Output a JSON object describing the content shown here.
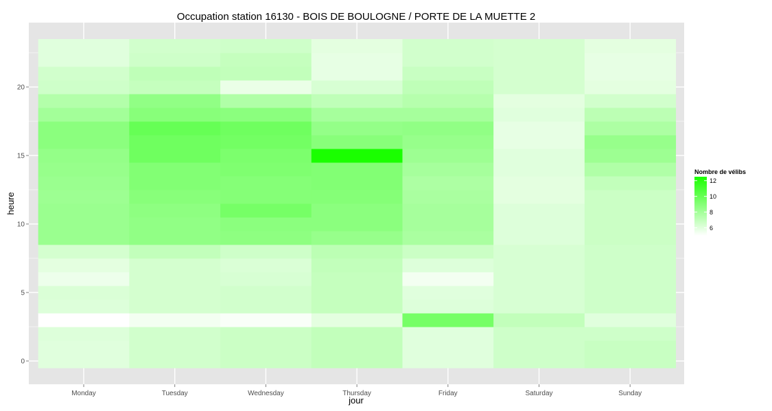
{
  "chart_data": {
    "type": "heatmap",
    "title": "Occupation station 16130 - BOIS DE BOULOGNE / PORTE DE LA MUETTE 2",
    "xlabel": "jour",
    "ylabel": "heure",
    "categories": [
      "Monday",
      "Tuesday",
      "Wednesday",
      "Thursday",
      "Friday",
      "Saturday",
      "Sunday"
    ],
    "y": [
      0,
      1,
      2,
      3,
      4,
      5,
      6,
      7,
      8,
      9,
      10,
      11,
      12,
      13,
      14,
      15,
      16,
      17,
      18,
      19,
      20,
      21,
      22,
      23
    ],
    "y_ticks": [
      0,
      5,
      10,
      15,
      20
    ],
    "ylim": [
      -0.5,
      23.5
    ],
    "values": [
      [
        6.0,
        6.5,
        6.7,
        7.0,
        6.0,
        6.6,
        6.8
      ],
      [
        6.0,
        6.5,
        6.7,
        7.0,
        6.0,
        6.6,
        6.8
      ],
      [
        6.1,
        6.5,
        6.7,
        7.0,
        6.0,
        6.6,
        6.6
      ],
      [
        5.0,
        5.4,
        5.2,
        5.9,
        9.5,
        7.0,
        6.0
      ],
      [
        6.1,
        6.4,
        6.5,
        6.9,
        6.1,
        6.3,
        6.6
      ],
      [
        6.2,
        6.4,
        6.5,
        6.9,
        6.0,
        6.3,
        6.6
      ],
      [
        5.6,
        6.4,
        6.3,
        6.9,
        5.4,
        6.3,
        6.6
      ],
      [
        5.9,
        6.4,
        6.2,
        7.0,
        6.1,
        6.3,
        6.6
      ],
      [
        6.4,
        7.0,
        6.6,
        7.2,
        6.7,
        6.3,
        6.6
      ],
      [
        8.3,
        8.6,
        8.7,
        8.4,
        7.8,
        6.1,
        6.7
      ],
      [
        8.3,
        8.6,
        8.8,
        8.8,
        7.9,
        6.1,
        6.7
      ],
      [
        8.3,
        8.7,
        9.5,
        8.8,
        7.9,
        6.1,
        6.7
      ],
      [
        8.2,
        8.9,
        9.0,
        9.0,
        7.8,
        5.9,
        6.7
      ],
      [
        8.3,
        9.1,
        9.0,
        9.1,
        7.7,
        5.9,
        7.0
      ],
      [
        8.4,
        9.1,
        9.2,
        9.1,
        7.9,
        6.0,
        7.6
      ],
      [
        8.5,
        9.7,
        9.3,
        12.5,
        8.2,
        6.0,
        8.2
      ],
      [
        8.8,
        9.7,
        9.6,
        8.9,
        8.4,
        5.8,
        8.4
      ],
      [
        8.8,
        10.0,
        9.7,
        8.5,
        8.6,
        5.8,
        7.7
      ],
      [
        8.0,
        8.9,
        8.8,
        7.9,
        7.9,
        6.0,
        7.2
      ],
      [
        7.5,
        8.6,
        7.6,
        7.1,
        7.4,
        5.9,
        6.5
      ],
      [
        6.6,
        6.9,
        5.7,
        6.3,
        7.1,
        6.4,
        5.9
      ],
      [
        6.5,
        7.1,
        7.0,
        5.8,
        6.8,
        6.4,
        5.8
      ],
      [
        6.0,
        6.6,
        6.9,
        5.8,
        6.5,
        6.4,
        5.8
      ],
      [
        6.0,
        6.5,
        6.6,
        5.9,
        6.5,
        6.4,
        5.9
      ]
    ],
    "legend": {
      "title": "Nombre de vélibs",
      "position": "right",
      "ticks": [
        6,
        8,
        10,
        12
      ],
      "range": [
        5.0,
        12.5
      ]
    },
    "grid": true,
    "colors": {
      "low": "#ffffff",
      "high": "#1aff00",
      "panel": "#e5e5e5",
      "grid": "#ffffff"
    }
  }
}
